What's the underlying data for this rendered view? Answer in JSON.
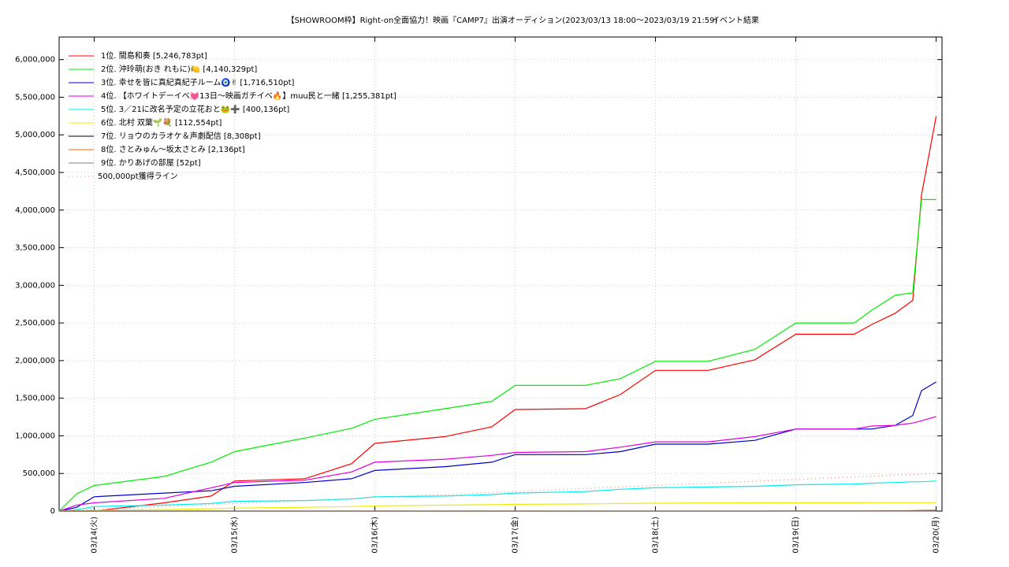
{
  "chart_data": {
    "type": "line",
    "title": "【SHOWROOM枠】Right-on全面協力！映画『CAMP7』出演オーディション(2023/03/13 18:00～2023/03/19 21:59)",
    "subtitle": "イベント結果",
    "x": [
      "03/13 18:00",
      "03/13 21:00",
      "03/14 00:00",
      "03/14 12:00",
      "03/14 20:00",
      "03/15 00:00",
      "03/15 12:00",
      "03/15 20:00",
      "03/16 00:00",
      "03/16 12:00",
      "03/16 20:00",
      "03/17 00:00",
      "03/17 12:00",
      "03/17 18:00",
      "03/18 00:00",
      "03/18 09:00",
      "03/18 17:00",
      "03/19 00:00",
      "03/19 10:00",
      "03/19 13:00",
      "03/19 17:00",
      "03/19 20:00",
      "03/19 21:30",
      "03/20 00:00"
    ],
    "xlim": [
      "03/13 18:00",
      "03/20 01:00"
    ],
    "xticks": [
      {
        "value": "03/14 00:00",
        "label": "03/14(火)"
      },
      {
        "value": "03/15 00:00",
        "label": "03/15(水)"
      },
      {
        "value": "03/16 00:00",
        "label": "03/16(木)"
      },
      {
        "value": "03/17 00:00",
        "label": "03/17(金)"
      },
      {
        "value": "03/18 00:00",
        "label": "03/18(土)"
      },
      {
        "value": "03/19 00:00",
        "label": "03/19(日)"
      },
      {
        "value": "03/20 00:00",
        "label": "03/20(月)"
      }
    ],
    "ylim": [
      0,
      6300000
    ],
    "yticks": [
      0,
      {
        "value": 500000,
        "label": "500,000"
      },
      {
        "value": 1000000,
        "label": "1,000,000"
      },
      {
        "value": 1500000,
        "label": "1,500,000"
      },
      {
        "value": 2000000,
        "label": "2,000,000"
      },
      {
        "value": 2500000,
        "label": "2,500,000"
      },
      {
        "value": 3000000,
        "label": "3,000,000"
      },
      {
        "value": 3500000,
        "label": "3,500,000"
      },
      {
        "value": 4000000,
        "label": "4,000,000"
      },
      {
        "value": 4500000,
        "label": "4,500,000"
      },
      {
        "value": 5000000,
        "label": "5,000,000"
      },
      {
        "value": 5500000,
        "label": "5,500,000"
      },
      {
        "value": 6000000,
        "label": "6,000,000"
      }
    ],
    "grid": true,
    "legend": "upper left",
    "series": [
      {
        "name": "1位. 間島和奏 [5,246,783pt]",
        "color": "#ff0000",
        "values": [
          0,
          0,
          0,
          110000,
          200000,
          400000,
          430000,
          630000,
          900000,
          990000,
          1120000,
          1350000,
          1360000,
          1550000,
          1870000,
          1870000,
          2010000,
          2350000,
          2350000,
          2480000,
          2630000,
          2800000,
          4200000,
          5246783
        ]
      },
      {
        "name": "2位. 沖玲萌(おき れもに)🍋 [4,140,329pt]",
        "color": "#00ee00",
        "values": [
          0,
          230000,
          340000,
          460000,
          650000,
          790000,
          970000,
          1100000,
          1220000,
          1360000,
          1460000,
          1670000,
          1670000,
          1760000,
          1990000,
          1990000,
          2150000,
          2500000,
          2500000,
          2670000,
          2870000,
          2900000,
          4140000,
          4140329
        ]
      },
      {
        "name": "3位. 幸せを皆に真紀真紀子ルーム🧿✌ [1,716,510pt]",
        "color": "#0000cc",
        "values": [
          0,
          50000,
          190000,
          240000,
          270000,
          330000,
          380000,
          430000,
          540000,
          590000,
          650000,
          750000,
          750000,
          790000,
          890000,
          890000,
          940000,
          1090000,
          1090000,
          1090000,
          1140000,
          1270000,
          1600000,
          1716510
        ]
      },
      {
        "name": "4位. 【ホワイトデーイベ💓13日～映画ガチイベ🔥】muu民と一緒 [1,255,381pt]",
        "color": "#e000e0",
        "values": [
          0,
          80000,
          110000,
          170000,
          310000,
          380000,
          410000,
          520000,
          650000,
          690000,
          740000,
          780000,
          790000,
          850000,
          920000,
          920000,
          990000,
          1090000,
          1090000,
          1130000,
          1140000,
          1170000,
          1200000,
          1255381
        ]
      },
      {
        "name": "5位. 3／21に改名予定の立花おと🐸➕ [400,136pt]",
        "color": "#00eeee",
        "values": [
          0,
          20000,
          60000,
          80000,
          100000,
          130000,
          140000,
          160000,
          190000,
          200000,
          220000,
          240000,
          260000,
          290000,
          310000,
          320000,
          330000,
          350000,
          360000,
          370000,
          380000,
          390000,
          390000,
          400136
        ]
      },
      {
        "name": "6位. 北村 双葉🌱💐 [112,554pt]",
        "color": "#eeee00",
        "values": [
          0,
          5000,
          10000,
          20000,
          30000,
          40000,
          50000,
          60000,
          70000,
          80000,
          85000,
          90000,
          95000,
          100000,
          105000,
          108000,
          110000,
          110000,
          111000,
          112000,
          112000,
          112300,
          112500,
          112554
        ]
      },
      {
        "name": "7位. リョウのカラオケ＆声劇配信 [8,308pt]",
        "color": "#000000",
        "values": [
          0,
          0,
          0,
          0,
          0,
          0,
          0,
          0,
          0,
          0,
          0,
          0,
          0,
          0,
          0,
          0,
          0,
          1000,
          2000,
          3000,
          4000,
          5000,
          7000,
          8308
        ]
      },
      {
        "name": "8位. さとみゅん〜坂太さとみ [2,136pt]",
        "color": "#ff6600",
        "values": [
          0,
          0,
          0,
          0,
          0,
          0,
          0,
          0,
          0,
          0,
          0,
          0,
          0,
          0,
          0,
          0,
          0,
          200,
          500,
          800,
          1200,
          1600,
          2000,
          2136
        ]
      },
      {
        "name": "9位. かりあげの部屋 [52pt]",
        "color": "#808080",
        "values": [
          0,
          0,
          0,
          0,
          0,
          0,
          0,
          0,
          0,
          0,
          0,
          0,
          0,
          0,
          0,
          0,
          0,
          0,
          0,
          0,
          0,
          20,
          40,
          52
        ]
      },
      {
        "name": "500,000pt獲得ライン",
        "color": "#ff8080",
        "style": "dotted",
        "values": [
          0,
          10000,
          20000,
          60000,
          86700,
          100000,
          140000,
          166700,
          180000,
          220000,
          246700,
          260000,
          300000,
          320000,
          340000,
          370000,
          396700,
          420000,
          453300,
          463300,
          476700,
          486700,
          491700,
          500000
        ]
      }
    ]
  }
}
